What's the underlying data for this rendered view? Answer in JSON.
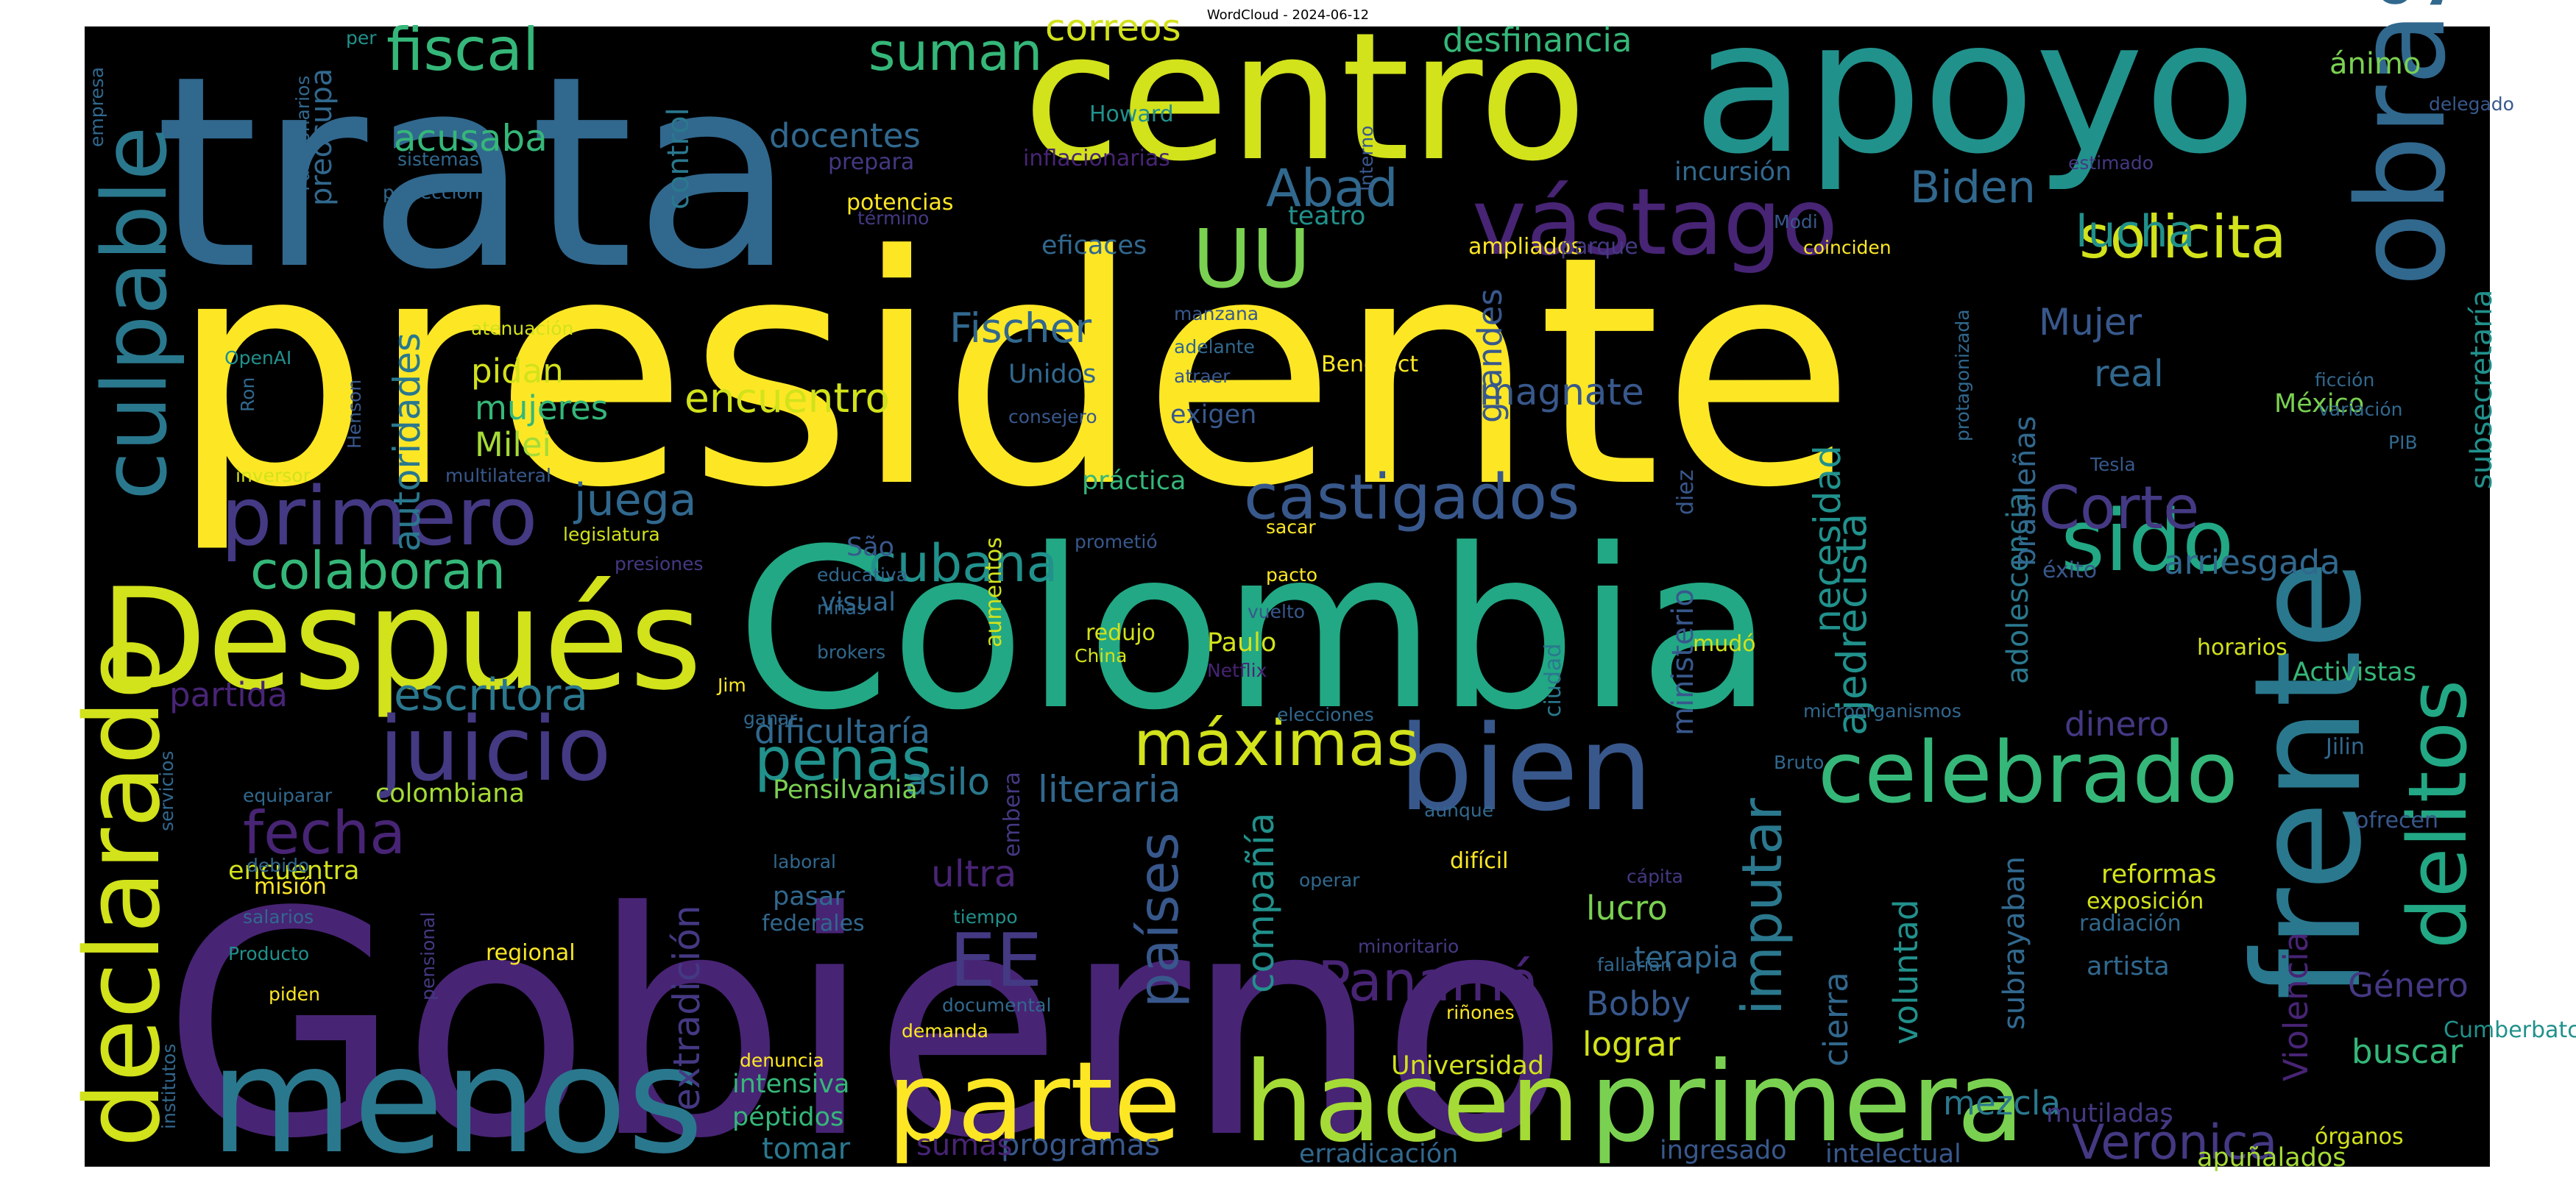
{
  "chart_data": {
    "type": "wordcloud",
    "title": "WordCloud - 2024-06-12",
    "background": "#000000",
    "colormap": "viridis",
    "words": [
      {
        "text": "presidente",
        "c": "#fde725"
      },
      {
        "text": "Gobierno",
        "c": "#482475"
      },
      {
        "text": "Colombia",
        "c": "#22a884"
      },
      {
        "text": "trata",
        "c": "#31688e"
      },
      {
        "text": "apoyo",
        "c": "#21918c"
      },
      {
        "text": "centro",
        "c": "#d2e21b"
      },
      {
        "text": "Después",
        "c": "#d2e21b"
      },
      {
        "text": "menos",
        "c": "#2a788e"
      },
      {
        "text": "frente",
        "c": "#2a788e"
      },
      {
        "text": "obras",
        "c": "#31688e"
      },
      {
        "text": "primera",
        "c": "#7ad151"
      },
      {
        "text": "hacen",
        "c": "#a5db36"
      },
      {
        "text": "parte",
        "c": "#fde725"
      },
      {
        "text": "declarado",
        "c": "#d2e21b"
      },
      {
        "text": "culpable",
        "c": "#2a788e"
      },
      {
        "text": "bien",
        "c": "#38588c"
      },
      {
        "text": "delitos",
        "c": "#22a884"
      },
      {
        "text": "celebrado",
        "c": "#35b779"
      },
      {
        "text": "juicio",
        "c": "#443983"
      },
      {
        "text": "vástago",
        "c": "#482475"
      },
      {
        "text": "primero",
        "c": "#443983"
      },
      {
        "text": "sido",
        "c": "#22a884"
      },
      {
        "text": "castigados",
        "c": "#38588c"
      },
      {
        "text": "máximas",
        "c": "#d2e21b"
      },
      {
        "text": "fiscal",
        "c": "#35b779"
      },
      {
        "text": "Corte",
        "c": "#443983"
      },
      {
        "text": "UU",
        "c": "#7ad151"
      },
      {
        "text": "EE",
        "c": "#443983"
      },
      {
        "text": "solicita",
        "c": "#d2e21b"
      },
      {
        "text": "penas",
        "c": "#21918c"
      },
      {
        "text": "cubana",
        "c": "#21918c"
      },
      {
        "text": "colaboran",
        "c": "#35b779"
      },
      {
        "text": "Panamá",
        "c": "#482475"
      },
      {
        "text": "fecha",
        "c": "#482475"
      },
      {
        "text": "escritora",
        "c": "#2a788e"
      },
      {
        "text": "países",
        "c": "#38588c"
      },
      {
        "text": "lucha",
        "c": "#21918c"
      },
      {
        "text": "Biden",
        "c": "#31688e"
      },
      {
        "text": "encuentro",
        "c": "#d2e21b"
      },
      {
        "text": "Verónica",
        "c": "#443983"
      },
      {
        "text": "suman",
        "c": "#35b779"
      },
      {
        "text": "correos",
        "c": "#d2e21b"
      },
      {
        "text": "imputar",
        "c": "#2a788e"
      },
      {
        "text": "Abad",
        "c": "#31688e"
      },
      {
        "text": "magnate",
        "c": "#38588c"
      },
      {
        "text": "acusaba",
        "c": "#35b779"
      },
      {
        "text": "juega",
        "c": "#31688e"
      },
      {
        "text": "Fischer",
        "c": "#31688e"
      },
      {
        "text": "Mujer",
        "c": "#38588c"
      },
      {
        "text": "real",
        "c": "#31688e"
      },
      {
        "text": "desfinancia",
        "c": "#35b779"
      },
      {
        "text": "ánimo",
        "c": "#7ad151"
      },
      {
        "text": "docentes",
        "c": "#31688e"
      },
      {
        "text": "control",
        "c": "#2a788e"
      },
      {
        "text": "preocupa",
        "c": "#31688e"
      },
      {
        "text": "autoridades",
        "c": "#2a788e"
      },
      {
        "text": "pidan",
        "c": "#d2e21b"
      },
      {
        "text": "mujeres",
        "c": "#35b779"
      },
      {
        "text": "Milei",
        "c": "#a5db36"
      },
      {
        "text": "necesidad",
        "c": "#21918c"
      },
      {
        "text": "ajedrecista",
        "c": "#21918c"
      },
      {
        "text": "adolescencia",
        "c": "#2a788e"
      },
      {
        "text": "brasileñas",
        "c": "#31688e"
      },
      {
        "text": "subsecretaría",
        "c": "#21918c"
      },
      {
        "text": "arriesgada",
        "c": "#31688e"
      },
      {
        "text": "dificultaría",
        "c": "#31688e"
      },
      {
        "text": "asilo",
        "c": "#2a788e"
      },
      {
        "text": "literaria",
        "c": "#31688e"
      },
      {
        "text": "compañía",
        "c": "#21918c"
      },
      {
        "text": "ministerio",
        "c": "#38588c"
      },
      {
        "text": "lucro",
        "c": "#7ad151"
      },
      {
        "text": "Bobby",
        "c": "#38588c"
      },
      {
        "text": "lograr",
        "c": "#d2e21b"
      },
      {
        "text": "cierra",
        "c": "#31688e"
      },
      {
        "text": "voluntad",
        "c": "#21918c"
      },
      {
        "text": "subrayaban",
        "c": "#31688e"
      },
      {
        "text": "Violencia",
        "c": "#482475"
      },
      {
        "text": "Género",
        "c": "#443983"
      },
      {
        "text": "buscar",
        "c": "#35b779"
      },
      {
        "text": "mezcla",
        "c": "#2a788e"
      },
      {
        "text": "grandes",
        "c": "#38588c"
      },
      {
        "text": "terapia",
        "c": "#31688e"
      },
      {
        "text": "dinero",
        "c": "#443983"
      },
      {
        "text": "ultra",
        "c": "#482475"
      },
      {
        "text": "partida",
        "c": "#482475"
      },
      {
        "text": "extradición",
        "c": "#443983"
      },
      {
        "text": "colombiana",
        "c": "#a5db36"
      },
      {
        "text": "encuentra",
        "c": "#d2e21b"
      },
      {
        "text": "pasar",
        "c": "#31688e"
      },
      {
        "text": "federales",
        "c": "#31688e"
      },
      {
        "text": "intensiva",
        "c": "#35b779"
      },
      {
        "text": "péptidos",
        "c": "#35b779"
      },
      {
        "text": "tomar",
        "c": "#2a788e"
      },
      {
        "text": "programas",
        "c": "#38588c"
      },
      {
        "text": "sumas",
        "c": "#482475"
      },
      {
        "text": "Universidad",
        "c": "#d2e21b"
      },
      {
        "text": "ingresado",
        "c": "#38588c"
      },
      {
        "text": "intelectual",
        "c": "#38588c"
      },
      {
        "text": "erradicación",
        "c": "#31688e"
      },
      {
        "text": "mutiladas",
        "c": "#443983"
      },
      {
        "text": "apuñalados",
        "c": "#a5db36"
      },
      {
        "text": "órganos",
        "c": "#d2e21b"
      },
      {
        "text": "Activistas",
        "c": "#35b779"
      },
      {
        "text": "artista",
        "c": "#31688e"
      },
      {
        "text": "Paulo",
        "c": "#d2e21b"
      },
      {
        "text": "São",
        "c": "#38588c"
      },
      {
        "text": "visual",
        "c": "#31688e"
      },
      {
        "text": "Pensilvania",
        "c": "#7ad151"
      },
      {
        "text": "embera",
        "c": "#443983"
      },
      {
        "text": "Unidos",
        "c": "#31688e"
      },
      {
        "text": "exigen",
        "c": "#38588c"
      },
      {
        "text": "México",
        "c": "#7ad151"
      },
      {
        "text": "eficaces",
        "c": "#31688e"
      },
      {
        "text": "teatro",
        "c": "#21918c"
      },
      {
        "text": "incursión",
        "c": "#31688e"
      },
      {
        "text": "práctica",
        "c": "#35b779"
      },
      {
        "text": "mudó",
        "c": "#d2e21b"
      },
      {
        "text": "éxito",
        "c": "#38588c"
      },
      {
        "text": "horarios",
        "c": "#d2e21b"
      },
      {
        "text": "reformas",
        "c": "#d2e21b"
      },
      {
        "text": "exposición",
        "c": "#d2e21b"
      },
      {
        "text": "radiación",
        "c": "#31688e"
      },
      {
        "text": "Cumberbatch",
        "c": "#21918c"
      },
      {
        "text": "Jilin",
        "c": "#31688e"
      },
      {
        "text": "ofrecen",
        "c": "#38588c"
      },
      {
        "text": "diez",
        "c": "#38588c"
      },
      {
        "text": "protagonizada",
        "c": "#31688e"
      },
      {
        "text": "ciudad",
        "c": "#2a788e"
      },
      {
        "text": "aumentos",
        "c": "#d2e21b"
      },
      {
        "text": "Howard",
        "c": "#21918c"
      },
      {
        "text": "potencias",
        "c": "#fde725"
      },
      {
        "text": "término",
        "c": "#443983"
      },
      {
        "text": "prepara",
        "c": "#443983"
      },
      {
        "text": "inflacionarias",
        "c": "#482475"
      },
      {
        "text": "estimado",
        "c": "#443983"
      },
      {
        "text": "delegado",
        "c": "#38588c"
      },
      {
        "text": "Interno",
        "c": "#38588c"
      },
      {
        "text": "ampliados",
        "c": "#fde725"
      },
      {
        "text": "parque",
        "c": "#443983"
      },
      {
        "text": "coinciden",
        "c": "#fde725"
      },
      {
        "text": "Modi",
        "c": "#38588c"
      },
      {
        "text": "protección",
        "c": "#31688e"
      },
      {
        "text": "sistemas",
        "c": "#31688e"
      },
      {
        "text": "per",
        "c": "#21918c"
      },
      {
        "text": "Funcionarios",
        "c": "#31688e"
      },
      {
        "text": "empresa",
        "c": "#31688e"
      },
      {
        "text": "atenuación",
        "c": "#d2e21b"
      },
      {
        "text": "OpenAI",
        "c": "#21918c"
      },
      {
        "text": "Ron",
        "c": "#31688e"
      },
      {
        "text": "Henson",
        "c": "#38588c"
      },
      {
        "text": "manzana",
        "c": "#38588c"
      },
      {
        "text": "adelante",
        "c": "#31688e"
      },
      {
        "text": "atraer",
        "c": "#38588c"
      },
      {
        "text": "consejero",
        "c": "#38588c"
      },
      {
        "text": "Benedict",
        "c": "#fde725"
      },
      {
        "text": "inversor",
        "c": "#d2e21b"
      },
      {
        "text": "multilateral",
        "c": "#38588c"
      },
      {
        "text": "legislatura",
        "c": "#d2e21b"
      },
      {
        "text": "presiones",
        "c": "#443983"
      },
      {
        "text": "educativa",
        "c": "#31688e"
      },
      {
        "text": "niñas",
        "c": "#31688e"
      },
      {
        "text": "brokers",
        "c": "#31688e"
      },
      {
        "text": "prometió",
        "c": "#38588c"
      },
      {
        "text": "sacar",
        "c": "#fde725"
      },
      {
        "text": "pacto",
        "c": "#fde725"
      },
      {
        "text": "vuelto",
        "c": "#38588c"
      },
      {
        "text": "redujo",
        "c": "#d2e21b"
      },
      {
        "text": "China",
        "c": "#d2e21b"
      },
      {
        "text": "Netflix",
        "c": "#482475"
      },
      {
        "text": "elecciones",
        "c": "#31688e"
      },
      {
        "text": "microorganismos",
        "c": "#31688e"
      },
      {
        "text": "Bruto",
        "c": "#31688e"
      },
      {
        "text": "aunque",
        "c": "#31688e"
      },
      {
        "text": "difícil",
        "c": "#fde725"
      },
      {
        "text": "cápita",
        "c": "#443983"
      },
      {
        "text": "operar",
        "c": "#31688e"
      },
      {
        "text": "minoritario",
        "c": "#443983"
      },
      {
        "text": "fallarían",
        "c": "#31688e"
      },
      {
        "text": "riñones",
        "c": "#fde725"
      },
      {
        "text": "Jim",
        "c": "#fde725"
      },
      {
        "text": "ganar",
        "c": "#31688e"
      },
      {
        "text": "equiparar",
        "c": "#31688e"
      },
      {
        "text": "servicios",
        "c": "#31688e"
      },
      {
        "text": "laboral",
        "c": "#31688e"
      },
      {
        "text": "debido",
        "c": "#31688e"
      },
      {
        "text": "misión",
        "c": "#fde725"
      },
      {
        "text": "salarios",
        "c": "#31688e"
      },
      {
        "text": "tiempo",
        "c": "#21918c"
      },
      {
        "text": "regional",
        "c": "#fde725"
      },
      {
        "text": "Producto",
        "c": "#21918c"
      },
      {
        "text": "piden",
        "c": "#fde725"
      },
      {
        "text": "pensional",
        "c": "#443983"
      },
      {
        "text": "documental",
        "c": "#31688e"
      },
      {
        "text": "demanda",
        "c": "#fde725"
      },
      {
        "text": "denuncia",
        "c": "#fde725"
      },
      {
        "text": "institutos",
        "c": "#31688e"
      },
      {
        "text": "ficción",
        "c": "#31688e"
      },
      {
        "text": "variación",
        "c": "#31688e"
      },
      {
        "text": "PIB",
        "c": "#31688e"
      },
      {
        "text": "Tesla",
        "c": "#38588c"
      }
    ]
  }
}
